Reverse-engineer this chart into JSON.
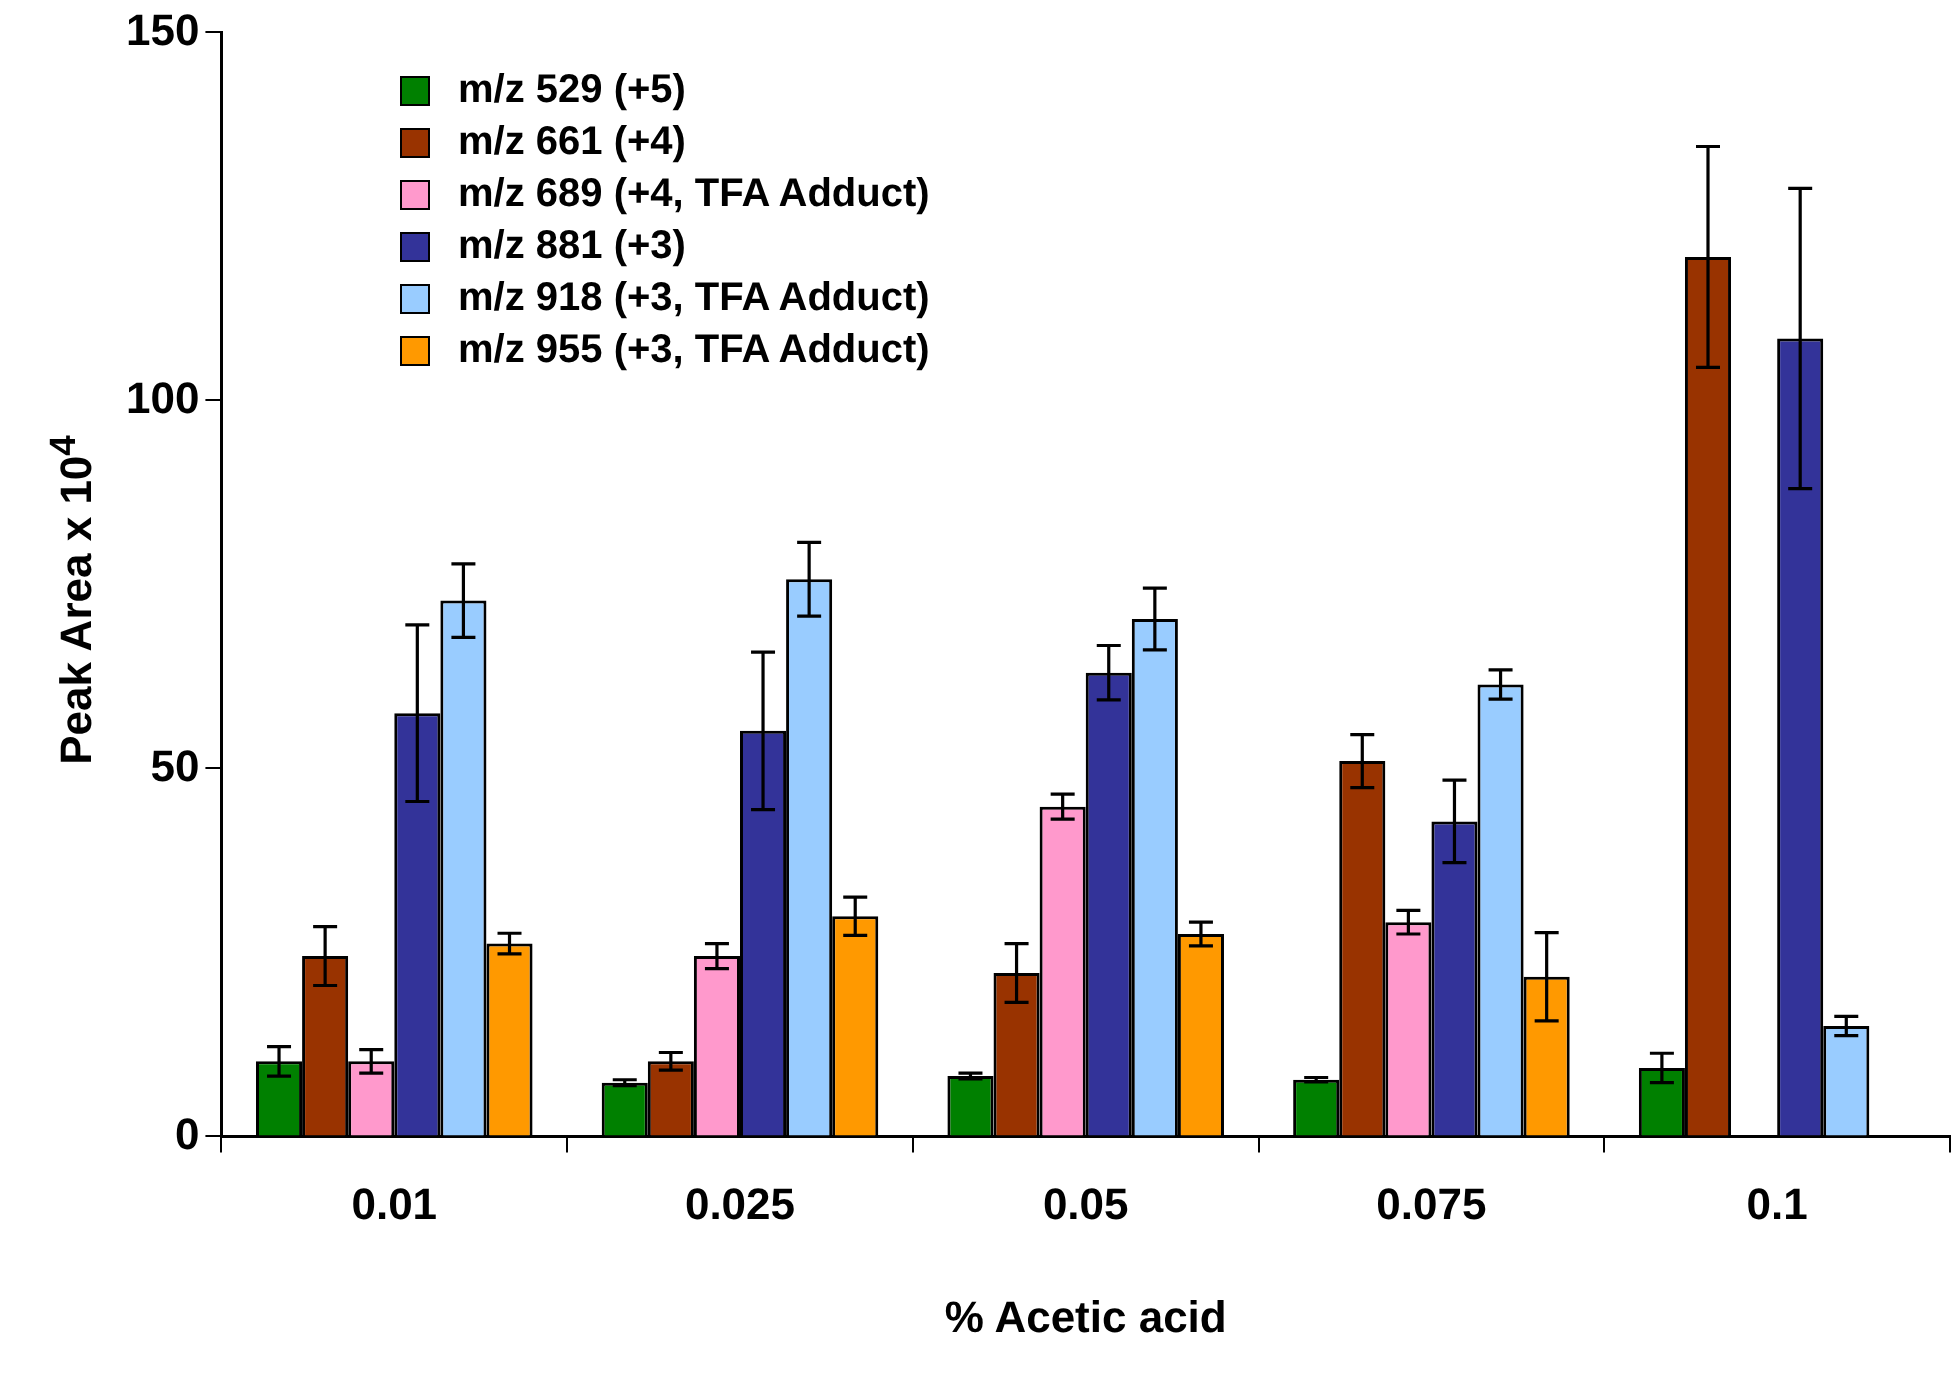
{
  "chart_data": {
    "type": "bar",
    "xlabel": "% Acetic acid",
    "ylabel": "Peak Area x 10$^{4}$",
    "categories": [
      "0.01",
      "0.025",
      "0.05",
      "0.075",
      "0.1"
    ],
    "ylim": [
      0,
      150
    ],
    "yticks": [
      0,
      50,
      100,
      150
    ],
    "grid": false,
    "legend": "top left",
    "series": [
      {
        "name": "m/z 529 (+5)",
        "color": "#008000",
        "values": [
          10.2,
          7.3,
          8.2,
          7.7,
          9.3
        ],
        "errors": [
          2,
          0.4,
          0.4,
          0.3,
          2
        ]
      },
      {
        "name": "m/z 661 (+4)",
        "color": "#993300",
        "values": [
          24.5,
          10.2,
          22.2,
          51.0,
          119.5
        ],
        "errors": [
          4,
          1.2,
          4,
          3.6,
          15
        ]
      },
      {
        "name": "m/z 689 (+4, TFA Adduct)",
        "color": "#ff99cc",
        "values": [
          10.2,
          24.5,
          44.8,
          29.1,
          null
        ],
        "errors": [
          1.6,
          1.7,
          1.7,
          1.6,
          null
        ]
      },
      {
        "name": "m/z 881 (+3)",
        "color": "#333399",
        "values": [
          57.5,
          55.1,
          63.0,
          42.8,
          108.4
        ],
        "errors": [
          12,
          10.7,
          3.7,
          5.6,
          20.4
        ]
      },
      {
        "name": "m/z 918 (+3, TFA Adduct)",
        "color": "#99ccff",
        "values": [
          72.8,
          75.7,
          70.3,
          61.4,
          15.0
        ],
        "errors": [
          5,
          5,
          4.2,
          2,
          1.3
        ]
      },
      {
        "name": "m/z 955 (+3, TFA Adduct)",
        "color": "#ff9900",
        "values": [
          26.2,
          29.9,
          27.5,
          21.7,
          null
        ],
        "errors": [
          1.4,
          2.6,
          1.6,
          6,
          null
        ]
      }
    ]
  }
}
